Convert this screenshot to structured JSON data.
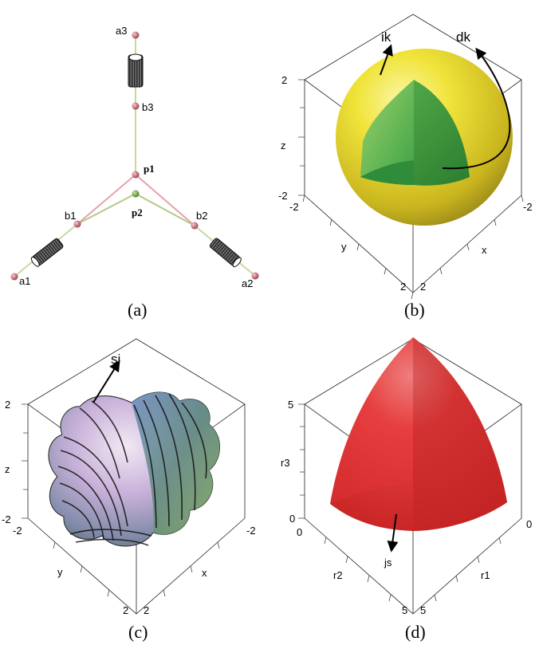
{
  "panels": {
    "a": {
      "caption": "(a)",
      "nodes": {
        "a1": "a1",
        "a2": "a2",
        "a3": "a3",
        "b1": "b1",
        "b2": "b2",
        "b3": "b3",
        "p1": "p1",
        "p2": "p2"
      }
    },
    "b": {
      "caption": "(b)",
      "annotations": {
        "ik": "ik",
        "dk": "dk"
      },
      "axis_labels": {
        "x": "x",
        "y": "y",
        "z": "z"
      },
      "ticks": {
        "z_top": "2",
        "z_bottom": "-2",
        "y_left": "-2",
        "y_bottom": "2",
        "x_bottom": "2",
        "x_right": "-2"
      },
      "colors": {
        "sphere": "#e8dc2a",
        "region": "#2f9a3c"
      }
    },
    "c": {
      "caption": "(c)",
      "annotations": {
        "si": "si"
      },
      "axis_labels": {
        "x": "x",
        "y": "y",
        "z": "z"
      },
      "ticks": {
        "z_top": "2",
        "z_bottom": "-2",
        "y_left": "-2",
        "y_bottom": "2",
        "x_bottom": "2",
        "x_right": "-2"
      }
    },
    "d": {
      "caption": "(d)",
      "annotations": {
        "js": "js"
      },
      "axis_labels": {
        "r1": "r1",
        "r2": "r2",
        "r3": "r3"
      },
      "ticks": {
        "r3_top": "5",
        "r3_bottom": "0",
        "r2_left": "0",
        "r2_bottom": "5",
        "r1_bottom": "5",
        "r1_right": "0"
      },
      "colors": {
        "surface": "#e02a2a"
      }
    }
  }
}
